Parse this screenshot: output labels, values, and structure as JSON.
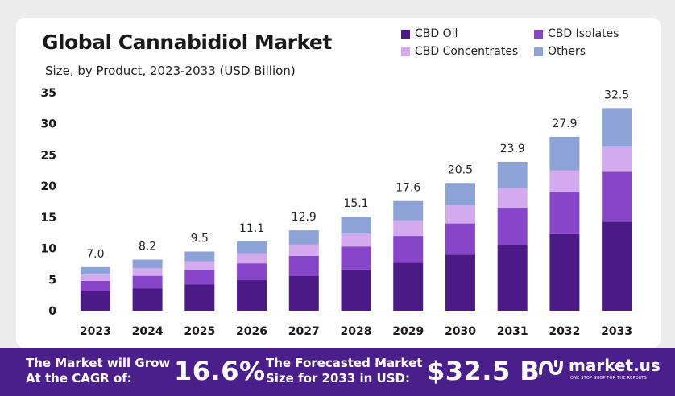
{
  "chart_data": {
    "type": "bar",
    "stacked": true,
    "title": "Global Cannabidiol Market",
    "subtitle": "Size, by Product, 2023-2033 (USD Billion)",
    "categories": [
      "2023",
      "2024",
      "2025",
      "2026",
      "2027",
      "2028",
      "2029",
      "2030",
      "2031",
      "2032",
      "2033"
    ],
    "totals": [
      7.0,
      8.2,
      9.5,
      11.1,
      12.9,
      15.1,
      17.6,
      20.5,
      23.9,
      27.9,
      32.5
    ],
    "total_labels": [
      "7.0",
      "8.2",
      "9.5",
      "11.1",
      "12.9",
      "15.1",
      "17.6",
      "20.5",
      "23.9",
      "27.9",
      "32.5"
    ],
    "series": [
      {
        "name": "CBD Oil",
        "color": "#4b1a86",
        "values": [
          3.1,
          3.6,
          4.2,
          4.9,
          5.6,
          6.6,
          7.7,
          9.0,
          10.5,
          12.3,
          14.3
        ]
      },
      {
        "name": "CBD Isolates",
        "color": "#8746c9",
        "values": [
          1.7,
          2.0,
          2.3,
          2.7,
          3.2,
          3.7,
          4.3,
          5.0,
          5.9,
          6.8,
          8.0
        ]
      },
      {
        "name": "CBD Concentrates",
        "color": "#d3aaee",
        "values": [
          1.0,
          1.2,
          1.4,
          1.6,
          1.8,
          2.1,
          2.5,
          2.9,
          3.3,
          3.4,
          4.0
        ]
      },
      {
        "name": "Others",
        "color": "#8da3d8",
        "values": [
          1.2,
          1.4,
          1.6,
          1.9,
          2.3,
          2.7,
          3.1,
          3.6,
          4.2,
          5.4,
          6.2
        ]
      }
    ],
    "ylim": [
      0,
      35
    ],
    "yticks": [
      0,
      5,
      10,
      15,
      20,
      25,
      30,
      35
    ],
    "legend_position": "top-right",
    "grid": false
  },
  "footer": {
    "cagr_label_line1": "The Market will Grow",
    "cagr_label_line2": "At the CAGR of:",
    "cagr_value": "16.6%",
    "forecast_label_line1": "The Forecasted Market",
    "forecast_label_line2": "Size for 2033 in USD:",
    "forecast_value": "$32.5 B",
    "brand_name": "market.us",
    "brand_tagline": "ONE STOP SHOP FOR THE REPORTS"
  },
  "colors": {
    "footer_bg": "#4a1f8c",
    "card_bg": "#ffffff",
    "page_bg": "#ececec"
  }
}
